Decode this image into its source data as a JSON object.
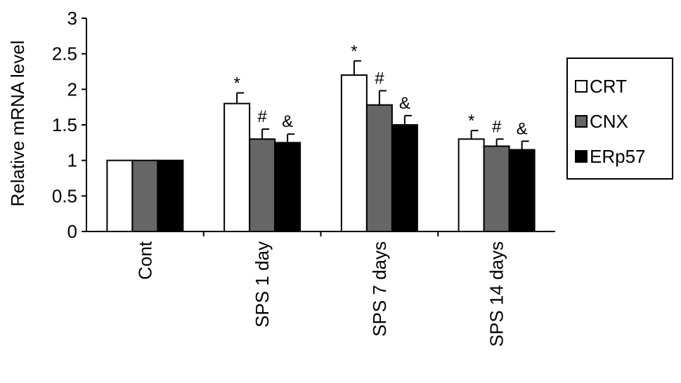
{
  "chart_data": {
    "type": "bar",
    "title": "",
    "xlabel": "",
    "ylabel": "Relative mRNA level",
    "ylim": [
      0,
      3
    ],
    "yticks": [
      "0",
      "0.5",
      "1",
      "1.5",
      "2",
      "2.5",
      "3"
    ],
    "categories": [
      "Cont",
      "SPS 1 day",
      "SPS 7 days",
      "SPS 14 days"
    ],
    "series": [
      {
        "name": "CRT",
        "color": "#ffffff",
        "values": [
          1.0,
          1.8,
          2.2,
          1.3
        ],
        "errors": [
          0,
          0.15,
          0.2,
          0.12
        ],
        "markers": [
          "",
          "*",
          "*",
          "*"
        ]
      },
      {
        "name": "CNX",
        "color": "#666666",
        "values": [
          1.0,
          1.3,
          1.78,
          1.2
        ],
        "errors": [
          0,
          0.14,
          0.2,
          0.1
        ],
        "markers": [
          "",
          "#",
          "#",
          "#"
        ]
      },
      {
        "name": "ERp57",
        "color": "#000000",
        "values": [
          1.0,
          1.25,
          1.5,
          1.15
        ],
        "errors": [
          0,
          0.12,
          0.13,
          0.12
        ],
        "markers": [
          "",
          "&",
          "&",
          "&"
        ]
      }
    ],
    "grid": false,
    "legend_position": "right"
  }
}
